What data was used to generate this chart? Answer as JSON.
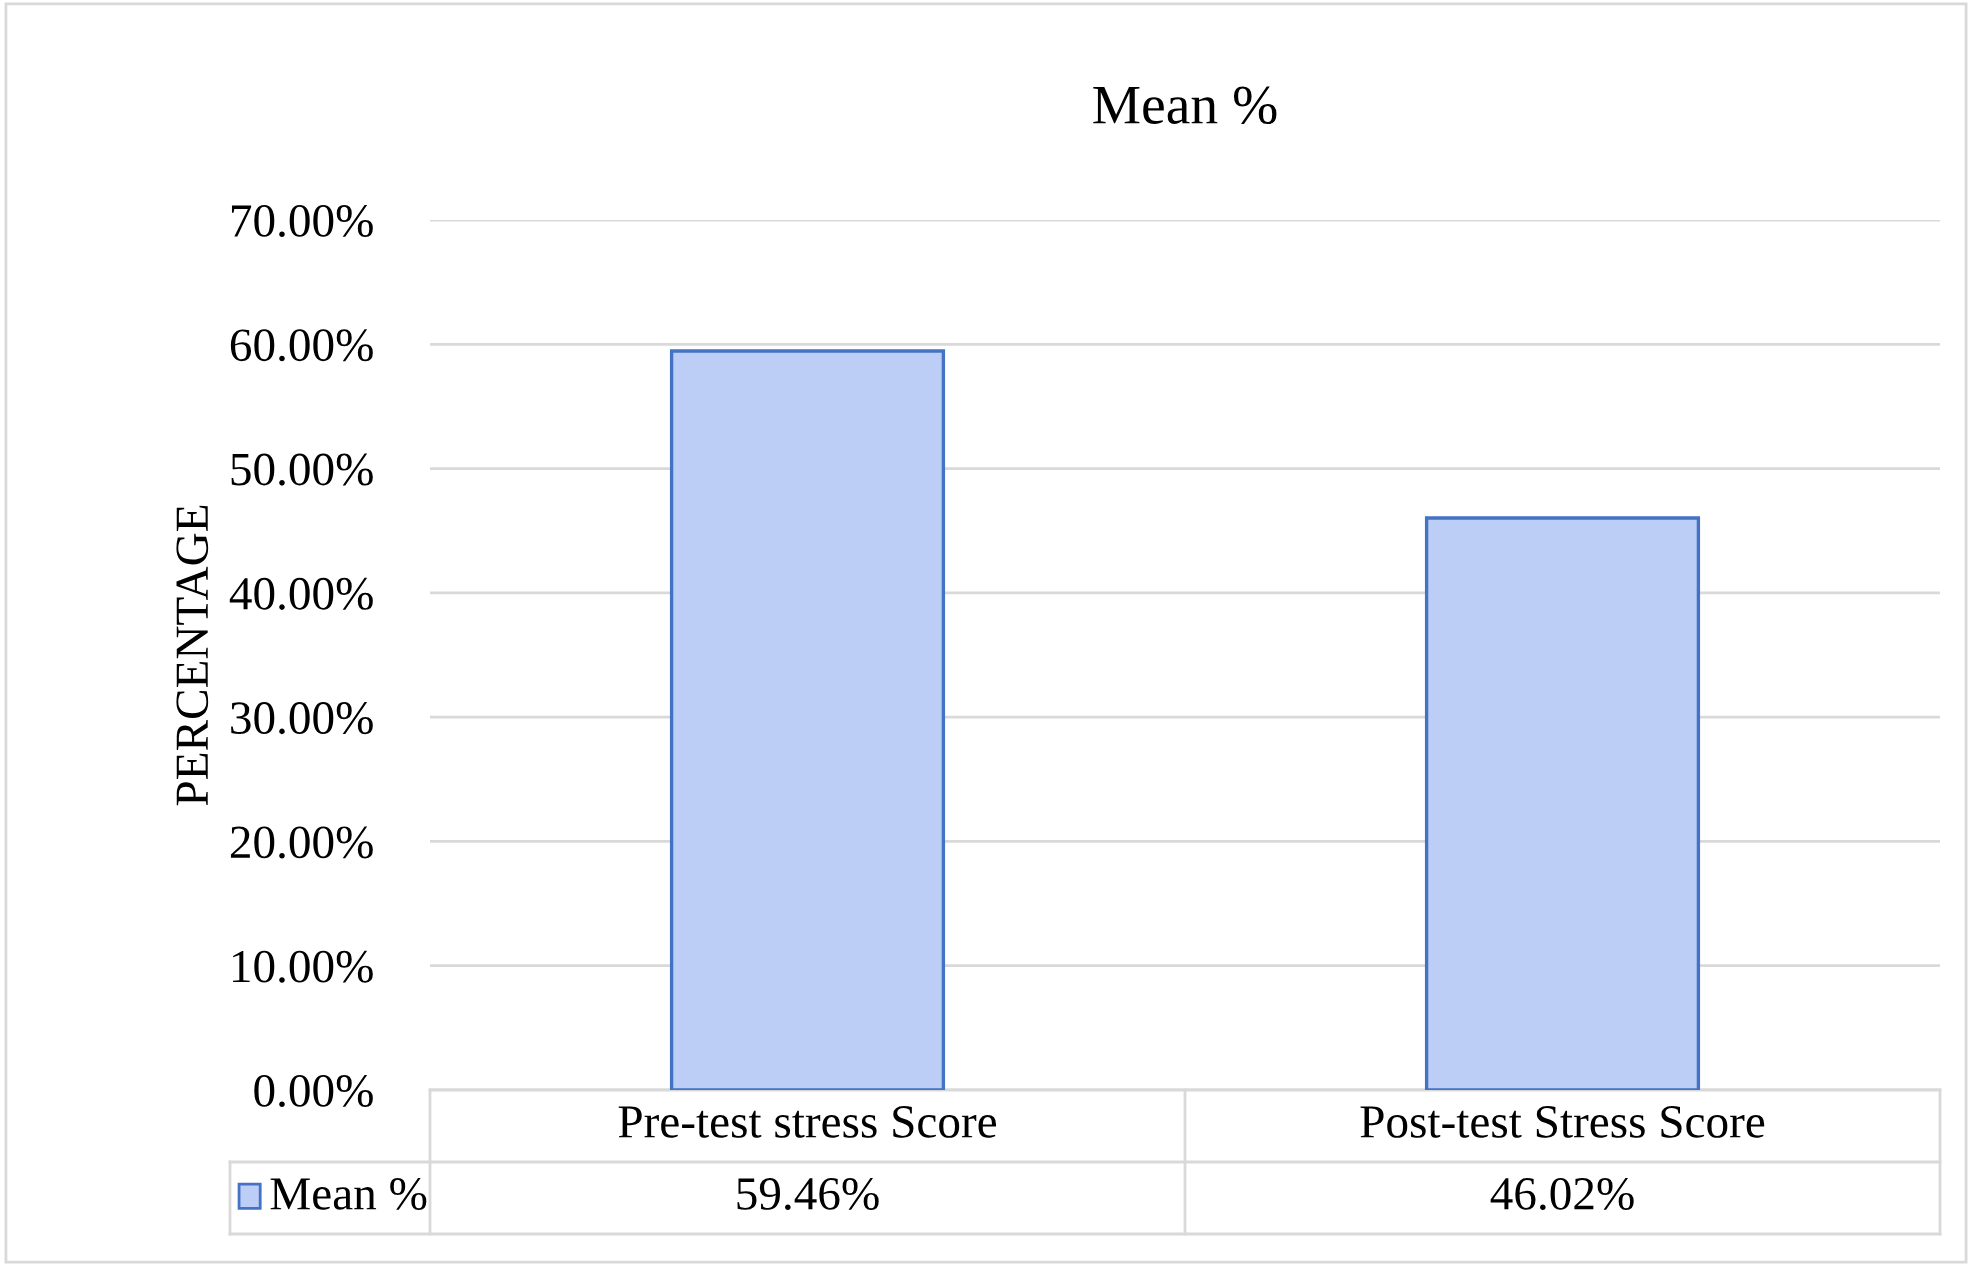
{
  "chart_data": {
    "type": "bar",
    "title": "Mean %",
    "ylabel": "PERCENTAGE",
    "categories": [
      "Pre-test stress Score",
      "Post-test Stress Score"
    ],
    "series": [
      {
        "name": "Mean %",
        "color": "#bccdf6",
        "values": [
          59.46,
          46.02
        ],
        "value_labels": [
          "59.46%",
          "46.02%"
        ]
      }
    ],
    "ylim": [
      0,
      70
    ],
    "yticks": [
      {
        "value": 0,
        "label": "0.00%"
      },
      {
        "value": 10,
        "label": "10.00%"
      },
      {
        "value": 20,
        "label": "20.00%"
      },
      {
        "value": 30,
        "label": "30.00%"
      },
      {
        "value": 40,
        "label": "40.00%"
      },
      {
        "value": 50,
        "label": "50.00%"
      },
      {
        "value": 60,
        "label": "60.00%"
      },
      {
        "value": 70,
        "label": "70.00%"
      }
    ],
    "grid": "y",
    "legend": "bottom"
  }
}
